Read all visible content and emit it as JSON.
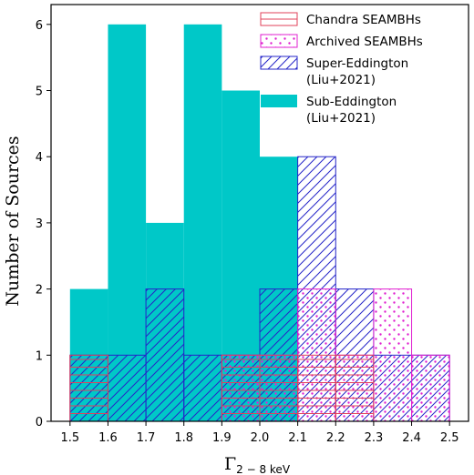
{
  "chart_data": {
    "type": "bar",
    "ylabel": "Number of Sources",
    "xlabel_base": "Γ",
    "xlabel_sub": "2 − 8 keV",
    "xlim": [
      1.45,
      2.55
    ],
    "ylim": [
      0,
      6.3
    ],
    "x_ticks": [
      "1.5",
      "1.6",
      "1.7",
      "1.8",
      "1.9",
      "2.0",
      "2.1",
      "2.2",
      "2.3",
      "2.4",
      "2.5"
    ],
    "y_ticks": [
      "0",
      "1",
      "2",
      "3",
      "4",
      "5",
      "6"
    ],
    "bin_edges": [
      1.5,
      1.6,
      1.7,
      1.8,
      1.9,
      2.0,
      2.1,
      2.2,
      2.3,
      2.4,
      2.5
    ],
    "legend_position": "top-right",
    "series": [
      {
        "name": "Sub-Eddington\n(Liu+2021)",
        "style": "filled",
        "color": "#00c8c8",
        "counts": [
          2,
          6,
          3,
          6,
          5,
          4,
          0,
          0,
          0,
          0
        ]
      },
      {
        "name": "Super-Eddington\n(Liu+2021)",
        "style": "hatch-diagonal",
        "color": "#2424c8",
        "counts": [
          1,
          1,
          2,
          1,
          1,
          2,
          4,
          2,
          1,
          1
        ]
      },
      {
        "name": "Archived SEAMBHs",
        "style": "hatch-dots",
        "color": "#e020d0",
        "counts": [
          0,
          0,
          0,
          0,
          1,
          1,
          2,
          1,
          2,
          1
        ]
      },
      {
        "name": "Chandra SEAMBHs",
        "style": "hatch-horizontal",
        "color": "#e0405a",
        "counts": [
          1,
          0,
          0,
          0,
          1,
          1,
          1,
          1,
          0,
          0
        ]
      }
    ],
    "legend_order": [
      3,
      2,
      1,
      0
    ]
  }
}
